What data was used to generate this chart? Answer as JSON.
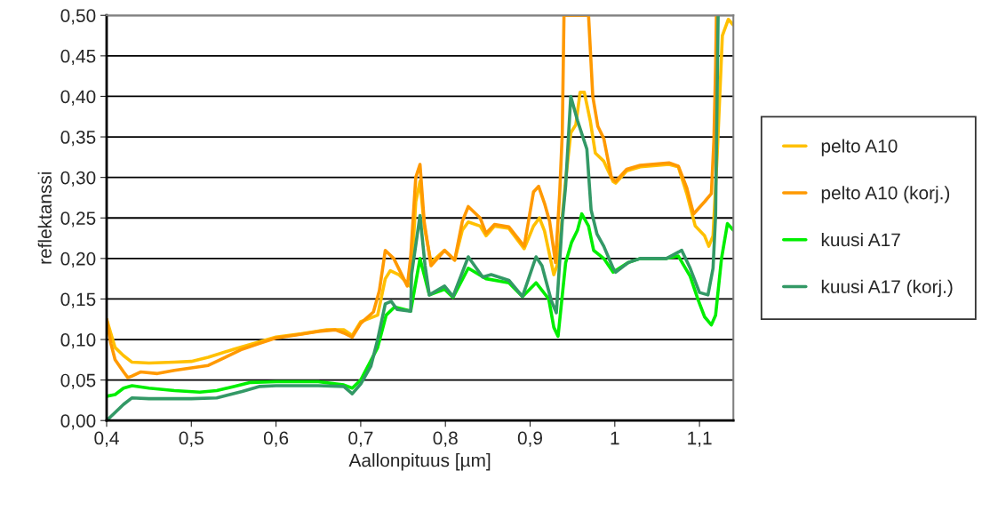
{
  "chart_data": {
    "type": "line",
    "xlabel": "Aallonpituus [µm]",
    "ylabel": "reflektanssi",
    "xlim": [
      0.4,
      1.14
    ],
    "ylim": [
      0,
      0.5
    ],
    "xticks": [
      {
        "value": 0.4,
        "label": "0,4"
      },
      {
        "value": 0.5,
        "label": "0,5"
      },
      {
        "value": 0.6,
        "label": "0,6"
      },
      {
        "value": 0.7,
        "label": "0,7"
      },
      {
        "value": 0.8,
        "label": "0,8"
      },
      {
        "value": 0.9,
        "label": "0,9"
      },
      {
        "value": 1,
        "label": "1"
      },
      {
        "value": 1.1,
        "label": "1,1"
      }
    ],
    "yticks": [
      {
        "value": 0,
        "label": "0,00"
      },
      {
        "value": 0.05,
        "label": "0,05"
      },
      {
        "value": 0.1,
        "label": "0,10"
      },
      {
        "value": 0.15,
        "label": "0,15"
      },
      {
        "value": 0.2,
        "label": "0,20"
      },
      {
        "value": 0.25,
        "label": "0,25"
      },
      {
        "value": 0.3,
        "label": "0,30"
      },
      {
        "value": 0.35,
        "label": "0,35"
      },
      {
        "value": 0.4,
        "label": "0,40"
      },
      {
        "value": 0.45,
        "label": "0,45"
      },
      {
        "value": 0.5,
        "label": "0,50"
      }
    ],
    "grid": "y",
    "legend": "right",
    "marker": "none",
    "line_style": "solid",
    "series": [
      {
        "name": "pelto A10",
        "color": "#ffc000",
        "x": [
          0.4,
          0.41,
          0.42,
          0.43,
          0.45,
          0.48,
          0.5,
          0.52,
          0.55,
          0.58,
          0.6,
          0.63,
          0.66,
          0.68,
          0.69,
          0.7,
          0.72,
          0.729,
          0.735,
          0.745,
          0.759,
          0.765,
          0.77,
          0.775,
          0.783,
          0.799,
          0.811,
          0.82,
          0.827,
          0.841,
          0.848,
          0.858,
          0.875,
          0.893,
          0.904,
          0.911,
          0.917,
          0.928,
          0.933,
          0.942,
          0.948,
          0.954,
          0.959,
          0.964,
          0.971,
          0.977,
          0.987,
          0.998,
          1.001,
          1.014,
          1.03,
          1.064,
          1.075,
          1.085,
          1.095,
          1.106,
          1.111,
          1.116,
          1.121,
          1.127,
          1.134,
          1.14
        ],
        "values": [
          0.125,
          0.09,
          0.08,
          0.072,
          0.071,
          0.072,
          0.073,
          0.078,
          0.088,
          0.097,
          0.103,
          0.107,
          0.112,
          0.112,
          0.105,
          0.122,
          0.13,
          0.175,
          0.185,
          0.18,
          0.165,
          0.27,
          0.295,
          0.24,
          0.195,
          0.21,
          0.198,
          0.235,
          0.245,
          0.24,
          0.228,
          0.24,
          0.237,
          0.212,
          0.24,
          0.25,
          0.234,
          0.18,
          0.195,
          0.297,
          0.355,
          0.365,
          0.405,
          0.405,
          0.37,
          0.33,
          0.32,
          0.295,
          0.293,
          0.308,
          0.313,
          0.316,
          0.313,
          0.28,
          0.24,
          0.228,
          0.215,
          0.228,
          0.33,
          0.475,
          0.495,
          0.488
        ]
      },
      {
        "name": "pelto A10 (korj.)",
        "color": "#ff9900",
        "x": [
          0.4,
          0.405,
          0.41,
          0.42,
          0.425,
          0.43,
          0.44,
          0.46,
          0.48,
          0.5,
          0.52,
          0.54,
          0.56,
          0.58,
          0.6,
          0.62,
          0.65,
          0.67,
          0.68,
          0.69,
          0.7,
          0.715,
          0.722,
          0.729,
          0.739,
          0.755,
          0.759,
          0.765,
          0.77,
          0.775,
          0.783,
          0.799,
          0.811,
          0.82,
          0.827,
          0.841,
          0.848,
          0.858,
          0.875,
          0.893,
          0.904,
          0.91,
          0.917,
          0.923,
          0.93,
          0.935,
          0.938,
          0.94,
          0.969,
          0.974,
          0.98,
          0.987,
          0.996,
          1.001,
          1.014,
          1.03,
          1.064,
          1.075,
          1.085,
          1.093,
          1.106,
          1.114,
          1.117,
          1.119,
          1.12
        ],
        "values": [
          0.125,
          0.095,
          0.075,
          0.06,
          0.053,
          0.055,
          0.06,
          0.058,
          0.062,
          0.065,
          0.068,
          0.078,
          0.088,
          0.095,
          0.102,
          0.105,
          0.11,
          0.112,
          0.108,
          0.103,
          0.12,
          0.134,
          0.16,
          0.21,
          0.2,
          0.166,
          0.202,
          0.3,
          0.316,
          0.245,
          0.191,
          0.21,
          0.198,
          0.246,
          0.264,
          0.25,
          0.231,
          0.242,
          0.239,
          0.215,
          0.282,
          0.289,
          0.268,
          0.246,
          0.195,
          0.282,
          0.355,
          0.5,
          0.5,
          0.4,
          0.363,
          0.348,
          0.3,
          0.295,
          0.31,
          0.315,
          0.318,
          0.314,
          0.287,
          0.255,
          0.27,
          0.28,
          0.345,
          0.436,
          0.5
        ]
      },
      {
        "name": "kuusi A17",
        "color": "#00ee00",
        "x": [
          0.4,
          0.41,
          0.42,
          0.43,
          0.45,
          0.48,
          0.51,
          0.53,
          0.55,
          0.57,
          0.6,
          0.65,
          0.68,
          0.69,
          0.7,
          0.72,
          0.73,
          0.74,
          0.759,
          0.77,
          0.781,
          0.799,
          0.809,
          0.827,
          0.848,
          0.875,
          0.891,
          0.907,
          0.922,
          0.928,
          0.933,
          0.942,
          0.949,
          0.956,
          0.961,
          0.969,
          0.975,
          0.987,
          0.998,
          1.016,
          1.03,
          1.061,
          1.075,
          1.089,
          1.098,
          1.106,
          1.114,
          1.119,
          1.126,
          1.133,
          1.14
        ],
        "values": [
          0.03,
          0.032,
          0.04,
          0.043,
          0.04,
          0.037,
          0.035,
          0.037,
          0.042,
          0.047,
          0.048,
          0.048,
          0.044,
          0.04,
          0.05,
          0.09,
          0.13,
          0.14,
          0.135,
          0.2,
          0.155,
          0.162,
          0.152,
          0.188,
          0.175,
          0.17,
          0.153,
          0.17,
          0.15,
          0.115,
          0.104,
          0.195,
          0.22,
          0.235,
          0.255,
          0.24,
          0.21,
          0.2,
          0.183,
          0.195,
          0.2,
          0.2,
          0.203,
          0.178,
          0.15,
          0.128,
          0.118,
          0.13,
          0.2,
          0.243,
          0.235
        ]
      },
      {
        "name": "kuusi A17 (korj.)",
        "color": "#339966",
        "x": [
          0.4,
          0.42,
          0.43,
          0.45,
          0.5,
          0.53,
          0.56,
          0.58,
          0.6,
          0.65,
          0.68,
          0.69,
          0.7,
          0.712,
          0.72,
          0.729,
          0.736,
          0.743,
          0.759,
          0.76,
          0.77,
          0.776,
          0.781,
          0.799,
          0.809,
          0.827,
          0.844,
          0.854,
          0.875,
          0.891,
          0.907,
          0.914,
          0.925,
          0.931,
          0.938,
          0.942,
          0.948,
          0.956,
          0.967,
          0.972,
          0.979,
          0.987,
          0.998,
          1.001,
          1.016,
          1.03,
          1.061,
          1.079,
          1.089,
          1.1,
          1.11,
          1.116,
          1.119,
          1.122
        ],
        "values": [
          0.0,
          0.02,
          0.028,
          0.027,
          0.027,
          0.028,
          0.036,
          0.042,
          0.043,
          0.043,
          0.042,
          0.033,
          0.045,
          0.067,
          0.1,
          0.144,
          0.147,
          0.137,
          0.135,
          0.18,
          0.253,
          0.191,
          0.155,
          0.166,
          0.153,
          0.202,
          0.177,
          0.18,
          0.173,
          0.153,
          0.202,
          0.191,
          0.148,
          0.133,
          0.246,
          0.29,
          0.4,
          0.37,
          0.335,
          0.26,
          0.23,
          0.215,
          0.188,
          0.183,
          0.195,
          0.2,
          0.2,
          0.21,
          0.188,
          0.158,
          0.155,
          0.188,
          0.253,
          0.5
        ]
      }
    ]
  }
}
